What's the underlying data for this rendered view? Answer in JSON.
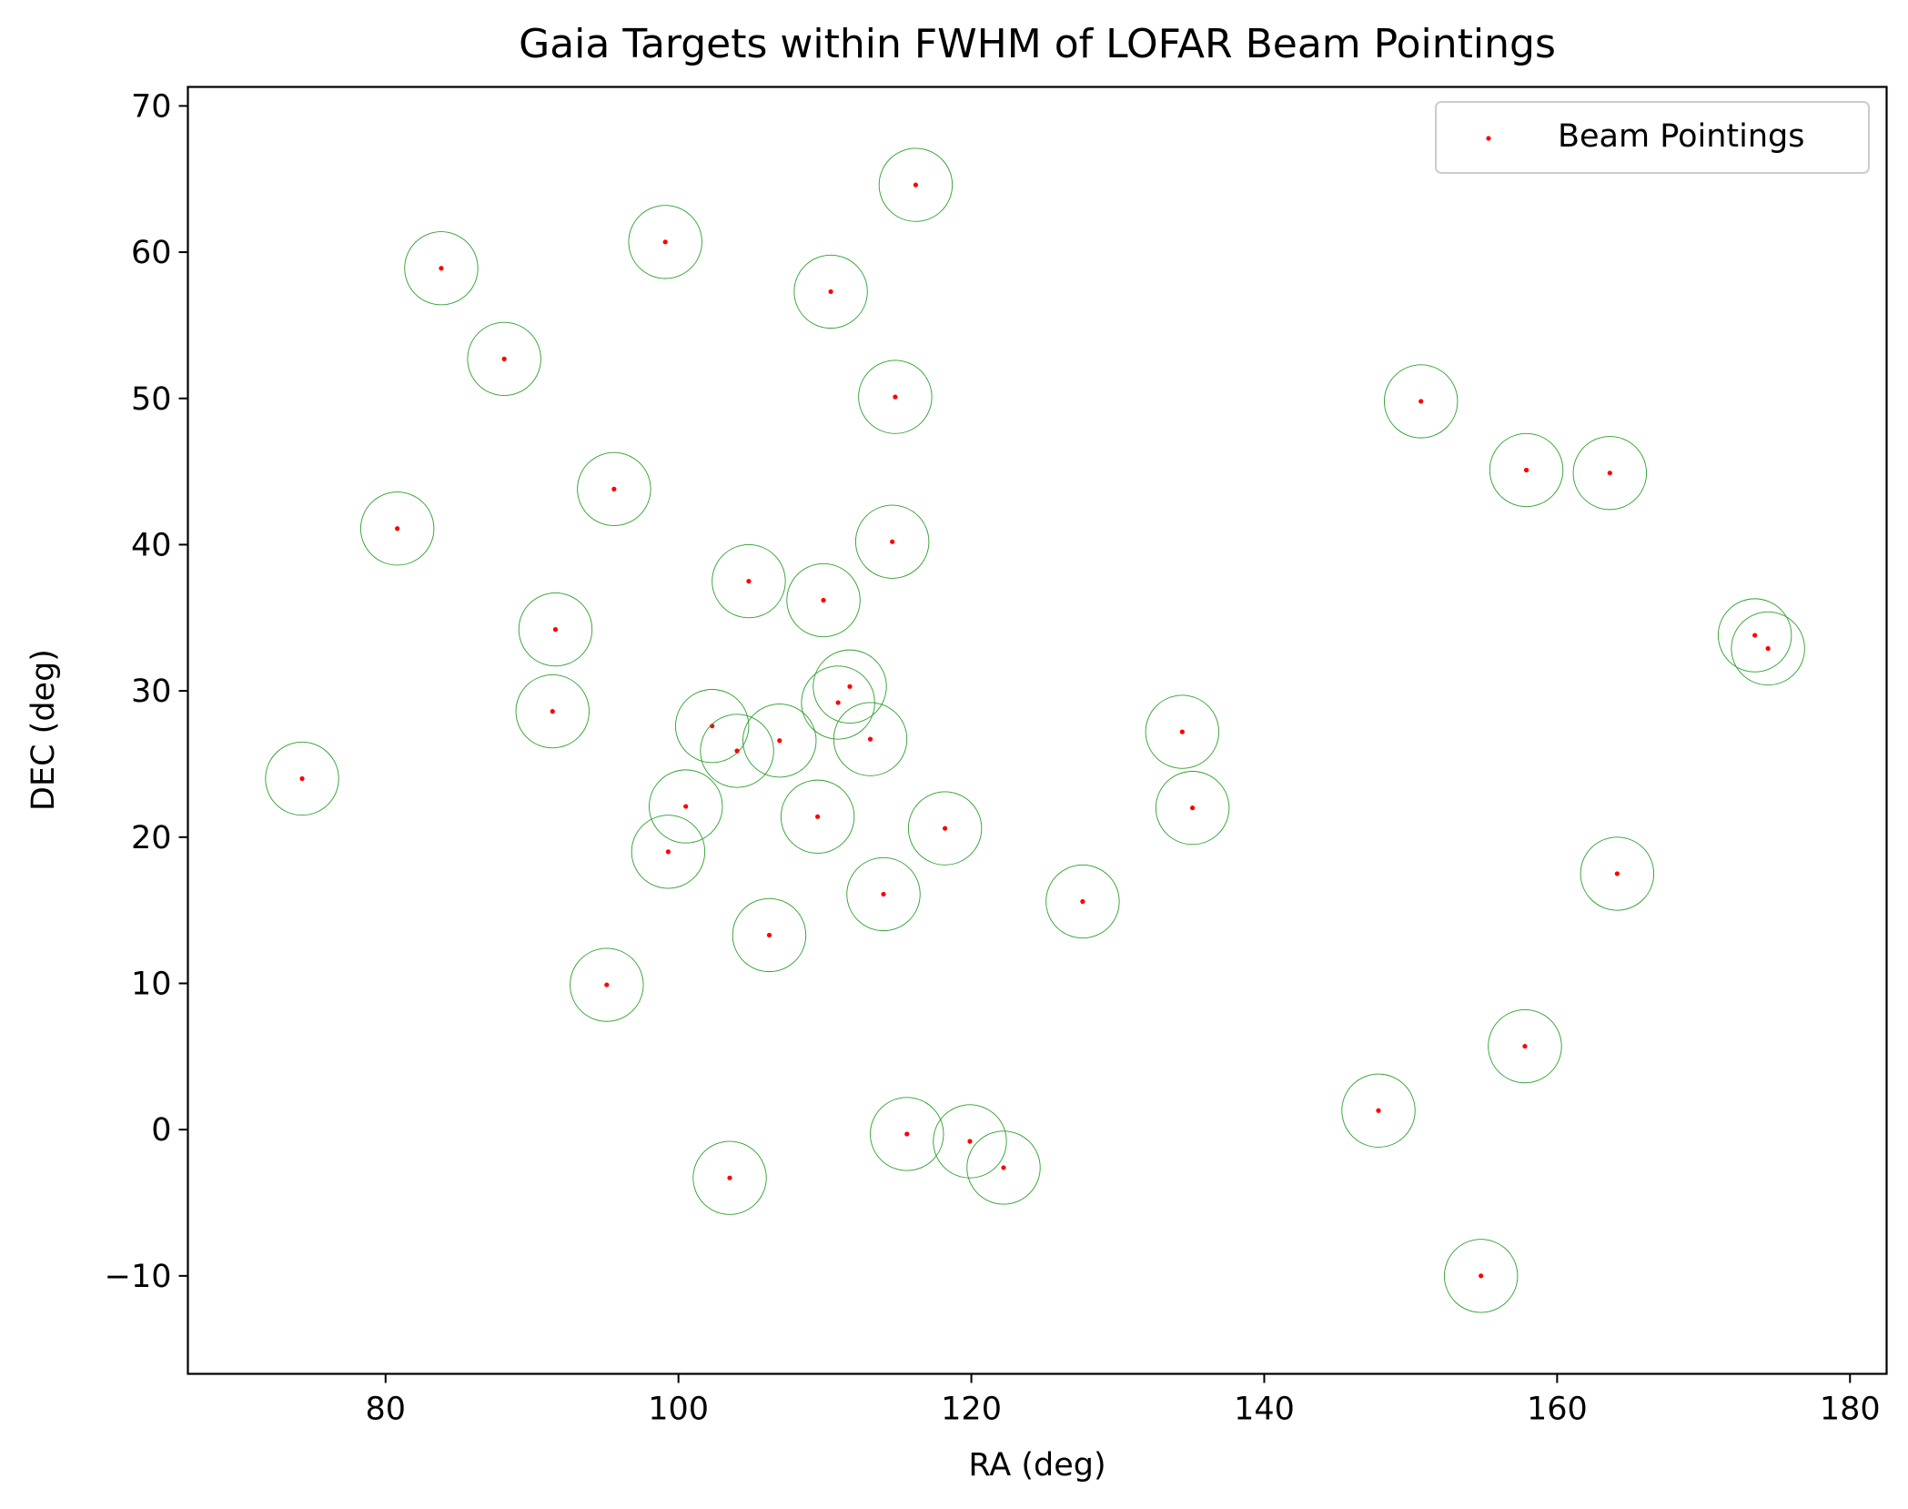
{
  "chart_data": {
    "type": "scatter",
    "title": "Gaia Targets within FWHM of LOFAR Beam Pointings",
    "xlabel": "RA (deg)",
    "ylabel": "DEC (deg)",
    "xlim": [
      66.5,
      182.5
    ],
    "ylim": [
      -16.7,
      71.3
    ],
    "xticks": [
      80,
      100,
      120,
      140,
      160,
      180
    ],
    "yticks": [
      -10,
      0,
      10,
      20,
      30,
      40,
      50,
      60,
      70
    ],
    "xtick_labels": [
      "80",
      "100",
      "120",
      "140",
      "160",
      "180"
    ],
    "ytick_labels": [
      "−10",
      "0",
      "10",
      "20",
      "30",
      "40",
      "50",
      "60",
      "70"
    ],
    "grid": false,
    "legend": {
      "placement": "top-right",
      "entries": [
        "Beam Pointings"
      ]
    },
    "circle_radius_deg": 2.5,
    "colors": {
      "points": "#ff0000",
      "circles": "#2ca02c"
    },
    "series": [
      {
        "name": "Beam Pointings",
        "points": [
          [
            74.3,
            24.0
          ],
          [
            80.8,
            41.1
          ],
          [
            83.8,
            58.9
          ],
          [
            88.1,
            52.7
          ],
          [
            91.4,
            28.6
          ],
          [
            91.6,
            34.2
          ],
          [
            95.1,
            9.9
          ],
          [
            95.6,
            43.8
          ],
          [
            99.1,
            60.7
          ],
          [
            99.3,
            19.0
          ],
          [
            100.5,
            22.1
          ],
          [
            102.3,
            27.6
          ],
          [
            103.5,
            -3.3
          ],
          [
            104.0,
            25.9
          ],
          [
            104.8,
            37.5
          ],
          [
            106.2,
            13.3
          ],
          [
            106.9,
            26.6
          ],
          [
            109.5,
            21.4
          ],
          [
            109.9,
            36.2
          ],
          [
            110.4,
            57.3
          ],
          [
            110.9,
            29.2
          ],
          [
            111.7,
            30.3
          ],
          [
            113.1,
            26.7
          ],
          [
            114.0,
            16.1
          ],
          [
            114.6,
            40.2
          ],
          [
            114.8,
            50.1
          ],
          [
            115.6,
            -0.3
          ],
          [
            116.2,
            64.6
          ],
          [
            118.2,
            20.6
          ],
          [
            119.9,
            -0.8
          ],
          [
            122.2,
            -2.6
          ],
          [
            127.6,
            15.6
          ],
          [
            134.4,
            27.2
          ],
          [
            135.1,
            22.0
          ],
          [
            147.8,
            1.3
          ],
          [
            150.7,
            49.8
          ],
          [
            154.8,
            -10.0
          ],
          [
            157.8,
            5.7
          ],
          [
            157.9,
            45.1
          ],
          [
            163.6,
            44.9
          ],
          [
            164.1,
            17.5
          ],
          [
            173.5,
            33.8
          ],
          [
            174.4,
            32.9
          ]
        ]
      }
    ]
  }
}
